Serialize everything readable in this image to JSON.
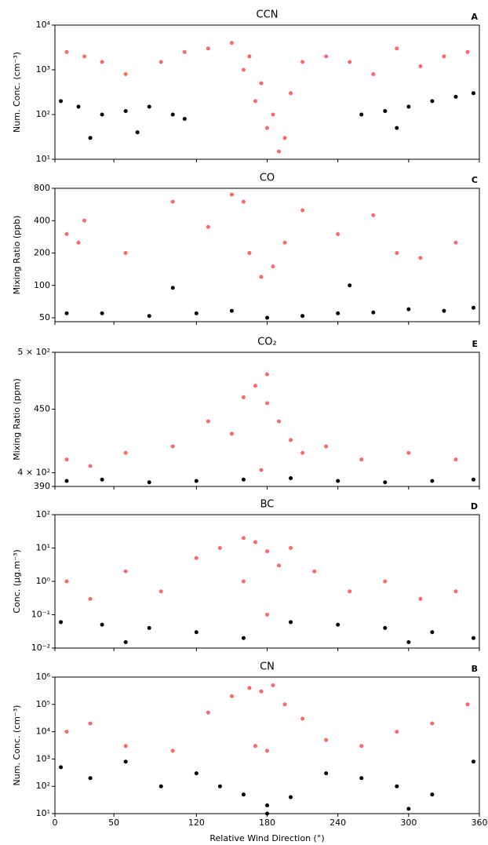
{
  "chart_data": [
    {
      "type": "scatter",
      "title": "CCN",
      "annotation": "A",
      "ylabel": "Num. Conc. (cm⁻³)",
      "yscale": "log",
      "xlim": [
        0,
        360
      ],
      "ylim": [
        10,
        10000
      ],
      "yticks": [
        {
          "value": 10,
          "label": "10¹"
        },
        {
          "value": 100,
          "label": "10²"
        },
        {
          "value": 1000,
          "label": "10³"
        },
        {
          "value": 10000,
          "label": "10⁴"
        }
      ],
      "series": [
        {
          "color": "#ff0000",
          "x": [
            10,
            25,
            40,
            60,
            90,
            110,
            130,
            150,
            165,
            175,
            185,
            195,
            210,
            230,
            250,
            270,
            290,
            310,
            330,
            350,
            170,
            180,
            190,
            160,
            200
          ],
          "values": [
            2500,
            2000,
            1500,
            800,
            1500,
            2500,
            3000,
            4000,
            2000,
            500,
            100,
            30,
            1500,
            2000,
            1500,
            800,
            3000,
            1200,
            2000,
            2500,
            200,
            50,
            15,
            1000,
            300
          ]
        },
        {
          "color": "#000000",
          "x": [
            5,
            20,
            40,
            60,
            80,
            100,
            110,
            260,
            280,
            300,
            320,
            340,
            355,
            30,
            70,
            290
          ],
          "values": [
            200,
            150,
            100,
            120,
            150,
            100,
            80,
            100,
            120,
            150,
            200,
            250,
            300,
            30,
            40,
            50
          ]
        }
      ]
    },
    {
      "type": "scatter",
      "title": "CO",
      "annotation": "C",
      "ylabel": "Mixing Ratio (ppb)",
      "yscale": "log",
      "xlim": [
        0,
        360
      ],
      "ylim": [
        46,
        800
      ],
      "yticks": [
        50,
        100,
        200,
        400,
        800
      ],
      "series": [
        {
          "color": "#ff0000",
          "x": [
            10,
            25,
            60,
            100,
            130,
            150,
            165,
            175,
            185,
            195,
            210,
            240,
            270,
            290,
            310,
            340,
            20,
            160
          ],
          "values": [
            300,
            400,
            200,
            600,
            350,
            700,
            200,
            120,
            150,
            250,
            500,
            300,
            450,
            200,
            180,
            250,
            250,
            600
          ]
        },
        {
          "color": "#000000",
          "x": [
            10,
            40,
            80,
            120,
            150,
            180,
            210,
            240,
            270,
            300,
            330,
            355,
            100,
            250
          ],
          "values": [
            55,
            55,
            52,
            55,
            58,
            50,
            52,
            55,
            56,
            60,
            58,
            62,
            95,
            100
          ]
        }
      ]
    },
    {
      "type": "scatter",
      "title": "CO₂",
      "annotation": "E",
      "ylabel": "Mixing Ratio (ppm)",
      "yscale": "log",
      "xlim": [
        0,
        360
      ],
      "ylim": [
        390,
        500
      ],
      "yticks": [
        {
          "value": 500,
          "label": "5 × 10²"
        },
        450,
        {
          "value": 400,
          "label": "4 × 10²"
        },
        390
      ],
      "series": [
        {
          "color": "#ff0000",
          "x": [
            10,
            30,
            60,
            100,
            130,
            150,
            160,
            170,
            180,
            190,
            200,
            210,
            230,
            260,
            300,
            340,
            180,
            175
          ],
          "values": [
            410,
            405,
            415,
            420,
            440,
            430,
            460,
            470,
            455,
            440,
            425,
            415,
            420,
            410,
            415,
            410,
            480,
            402
          ]
        },
        {
          "color": "#000000",
          "x": [
            10,
            40,
            80,
            120,
            160,
            200,
            240,
            280,
            320,
            355
          ],
          "values": [
            394,
            395,
            393,
            394,
            395,
            396,
            394,
            393,
            394,
            395
          ]
        }
      ]
    },
    {
      "type": "scatter",
      "title": "BC",
      "annotation": "D",
      "ylabel": "Conc. (μg.m⁻³)",
      "yscale": "log",
      "xlim": [
        0,
        360
      ],
      "ylim": [
        0.01,
        100
      ],
      "yticks": [
        {
          "value": 0.01,
          "label": "10⁻²"
        },
        {
          "value": 0.1,
          "label": "10⁻¹"
        },
        {
          "value": 1,
          "label": "10⁰"
        },
        {
          "value": 10,
          "label": "10¹"
        },
        {
          "value": 100,
          "label": "10²"
        }
      ],
      "series": [
        {
          "color": "#ff0000",
          "x": [
            10,
            30,
            60,
            90,
            120,
            140,
            160,
            170,
            180,
            190,
            200,
            220,
            250,
            280,
            310,
            340,
            180,
            160
          ],
          "values": [
            1,
            0.3,
            2,
            0.5,
            5,
            10,
            20,
            15,
            8,
            3,
            10,
            2,
            0.5,
            1,
            0.3,
            0.5,
            0.1,
            1
          ]
        },
        {
          "color": "#000000",
          "x": [
            5,
            40,
            80,
            120,
            160,
            200,
            240,
            280,
            320,
            355,
            60,
            300
          ],
          "values": [
            0.06,
            0.05,
            0.04,
            0.03,
            0.02,
            0.06,
            0.05,
            0.04,
            0.03,
            0.02,
            0.015,
            0.015
          ]
        }
      ]
    },
    {
      "type": "scatter",
      "title": "CN",
      "annotation": "B",
      "ylabel": "Num. Conc. (cm⁻³)",
      "xlabel": "Relative Wind Direction (°)",
      "yscale": "log",
      "xlim": [
        0,
        360
      ],
      "ylim": [
        10,
        1000000
      ],
      "xticks": [
        0,
        50,
        120,
        180,
        240,
        300,
        360
      ],
      "yticks": [
        {
          "value": 10,
          "label": "10¹"
        },
        {
          "value": 100,
          "label": "10²"
        },
        {
          "value": 1000,
          "label": "10³"
        },
        {
          "value": 10000,
          "label": "10⁴"
        },
        {
          "value": 100000,
          "label": "10⁵"
        },
        {
          "value": 1000000,
          "label": "10⁶"
        }
      ],
      "series": [
        {
          "color": "#ff0000",
          "x": [
            10,
            30,
            60,
            100,
            130,
            150,
            165,
            175,
            185,
            195,
            210,
            230,
            260,
            290,
            320,
            350,
            180,
            170
          ],
          "values": [
            10000,
            20000,
            3000,
            2000,
            50000,
            200000,
            400000,
            300000,
            500000,
            100000,
            30000,
            5000,
            3000,
            10000,
            20000,
            100000,
            2000,
            3000
          ]
        },
        {
          "color": "#000000",
          "x": [
            5,
            30,
            60,
            90,
            120,
            140,
            160,
            180,
            200,
            230,
            260,
            290,
            320,
            355,
            180,
            300
          ],
          "values": [
            500,
            200,
            800,
            100,
            300,
            100,
            50,
            20,
            40,
            300,
            200,
            100,
            50,
            800,
            10,
            15
          ]
        }
      ]
    }
  ]
}
